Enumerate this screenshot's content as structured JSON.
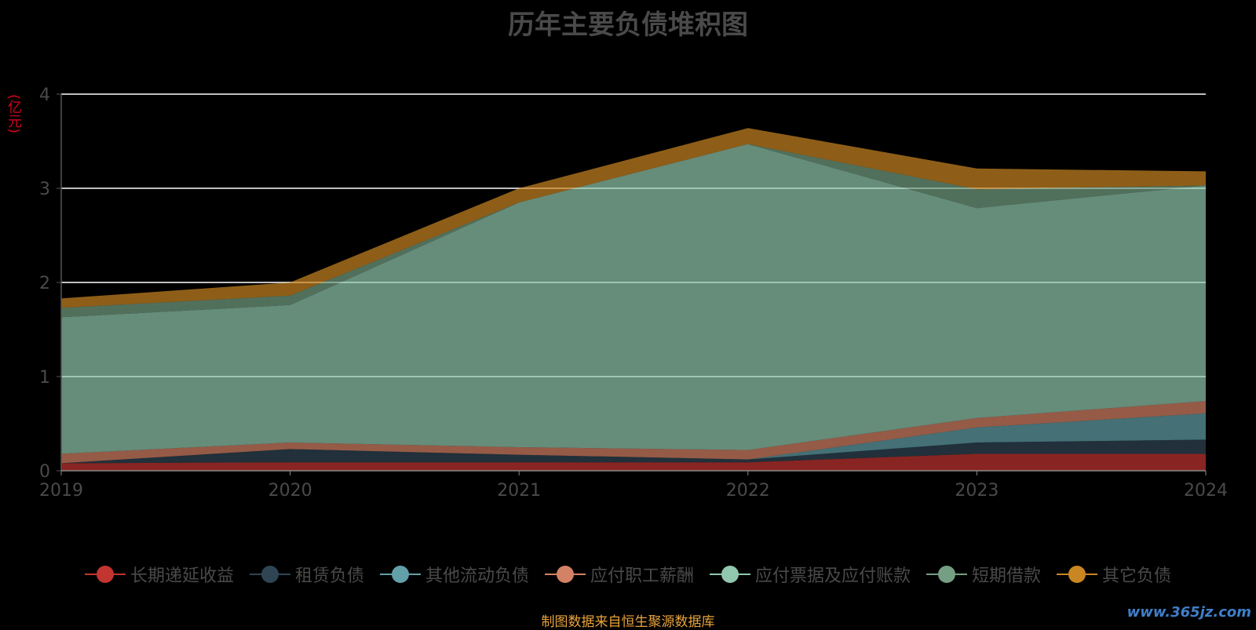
{
  "chart_data": {
    "type": "area",
    "title": "历年主要负债堆积图",
    "ylabel": "(亿元)",
    "xlabel": "",
    "categories": [
      "2019",
      "2020",
      "2021",
      "2022",
      "2023",
      "2024"
    ],
    "ylim": [
      0,
      4
    ],
    "yticks": [
      0,
      1,
      2,
      3,
      4
    ],
    "grid": true,
    "stacked": true,
    "legend_position": "bottom",
    "series": [
      {
        "name": "长期递延收益",
        "color": "#c23531",
        "values": [
          0.08,
          0.09,
          0.09,
          0.09,
          0.18,
          0.18
        ]
      },
      {
        "name": "租赁负债",
        "color": "#2f4554",
        "values": [
          0.0,
          0.14,
          0.08,
          0.03,
          0.12,
          0.15
        ]
      },
      {
        "name": "其他流动负债",
        "color": "#61a0a8",
        "values": [
          0.0,
          0.0,
          0.0,
          0.0,
          0.16,
          0.28
        ]
      },
      {
        "name": "应付职工薪酬",
        "color": "#d48265",
        "values": [
          0.1,
          0.07,
          0.08,
          0.1,
          0.1,
          0.13
        ]
      },
      {
        "name": "应付票据及应付账款",
        "color": "#91c7ae",
        "values": [
          1.45,
          1.46,
          2.6,
          3.25,
          2.23,
          2.29
        ]
      },
      {
        "name": "短期借款",
        "color": "#749f83",
        "values": [
          0.1,
          0.1,
          0.0,
          0.0,
          0.2,
          0.0
        ]
      },
      {
        "name": "其它负债",
        "color": "#ca8622",
        "values": [
          0.1,
          0.14,
          0.15,
          0.17,
          0.22,
          0.15
        ]
      }
    ]
  },
  "footer": {
    "source": "制图数据来自恒生聚源数据库",
    "watermark": "www.365jz.com"
  }
}
